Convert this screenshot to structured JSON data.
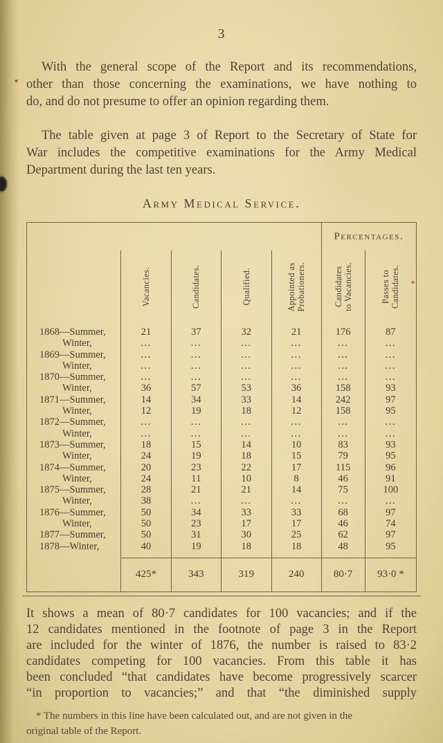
{
  "page": {
    "number": "3",
    "paragraph1": {
      "lines": [
        {
          "text": "With the general scope of the Report and its recommendations,",
          "indent": true,
          "justify": true
        },
        {
          "text": "other than those concerning the examinations, we have nothing to",
          "indent": false,
          "justify": true
        },
        {
          "text": "do, and do not presume to offer an opinion regarding them.",
          "indent": false,
          "justify": false
        }
      ]
    },
    "paragraph2": {
      "lines": [
        {
          "text": "The table given at page 3 of Report to the Secretary of State for",
          "indent": true,
          "justify": true
        },
        {
          "text": "War includes the competitive examinations for the Army Medical",
          "indent": false,
          "justify": true
        },
        {
          "text": "Department during the last ten years.",
          "indent": false,
          "justify": false
        }
      ]
    },
    "table_title": "Army Medical Service.",
    "closing_paragraph": {
      "lines": [
        {
          "text": "It shows a mean of 80·7 candidates for 100 vacancies; and if the",
          "indent": false,
          "justify": true
        },
        {
          "text": "12 candidates mentioned in the footnote of page 3 in the Report",
          "indent": false,
          "justify": true
        },
        {
          "text": "are included for the winter of 1876, the number is raised to 83·2",
          "indent": false,
          "justify": true
        },
        {
          "text": "candidates competing for 100 vacancies.  From this table it has",
          "indent": false,
          "justify": true
        },
        {
          "text": "been concluded “that candidates have become progressively scarcer",
          "indent": false,
          "justify": true
        },
        {
          "text": "“in proportion to vacancies;” and that “the diminished supply",
          "indent": false,
          "justify": true
        }
      ]
    },
    "footnote": {
      "lines": [
        {
          "text": "* The numbers in this line have been calculated out, and are not given in the",
          "indent": true,
          "justify": false
        },
        {
          "text": "original table of the Report.",
          "indent": false,
          "justify": false
        }
      ]
    }
  },
  "table": {
    "percentages_header": "Percentages.",
    "column_headers": [
      {
        "lines": [
          "Vacancies."
        ]
      },
      {
        "lines": [
          "Candidates."
        ]
      },
      {
        "lines": [
          "Qualified."
        ]
      },
      {
        "lines": [
          "Appointed as",
          "Probationers."
        ]
      },
      {
        "lines": [
          "Candidates",
          "to Vacancies."
        ]
      },
      {
        "lines": [
          "Passes to",
          "Candidates."
        ]
      }
    ],
    "rows": [
      {
        "label": "1868—Summer,",
        "indent": false,
        "values": [
          "21",
          "37",
          "32",
          "21",
          "176",
          "87"
        ]
      },
      {
        "label": "Winter,",
        "indent": true,
        "values": [
          "...",
          "...",
          "...",
          "...",
          "...",
          "..."
        ]
      },
      {
        "label": "1869—Summer,",
        "indent": false,
        "values": [
          "...",
          "...",
          "...",
          "...",
          "...",
          "..."
        ]
      },
      {
        "label": "Winter,",
        "indent": true,
        "values": [
          "...",
          "...",
          "...",
          "...",
          "...",
          "..."
        ]
      },
      {
        "label": "1870—Summer,",
        "indent": false,
        "values": [
          "...",
          "...",
          "...",
          "...",
          "...",
          "..."
        ]
      },
      {
        "label": "Winter,",
        "indent": true,
        "values": [
          "36",
          "57",
          "53",
          "36",
          "158",
          "93"
        ]
      },
      {
        "label": "1871—Summer,",
        "indent": false,
        "values": [
          "14",
          "34",
          "33",
          "14",
          "242",
          "97"
        ]
      },
      {
        "label": "Winter,",
        "indent": true,
        "values": [
          "12",
          "19",
          "18",
          "12",
          "158",
          "95"
        ]
      },
      {
        "label": "1872—Summer,",
        "indent": false,
        "values": [
          "...",
          "...",
          "...",
          "...",
          "...",
          "..."
        ]
      },
      {
        "label": "Winter,",
        "indent": true,
        "values": [
          "...",
          "...",
          "...",
          "...",
          "...",
          "..."
        ]
      },
      {
        "label": "1873—Summer,",
        "indent": false,
        "values": [
          "18",
          "15",
          "14",
          "10",
          "83",
          "93"
        ]
      },
      {
        "label": "Winter,",
        "indent": true,
        "values": [
          "24",
          "19",
          "18",
          "15",
          "79",
          "95"
        ]
      },
      {
        "label": "1874—Summer,",
        "indent": false,
        "values": [
          "20",
          "23",
          "22",
          "17",
          "115",
          "96"
        ]
      },
      {
        "label": "Winter,",
        "indent": true,
        "values": [
          "24",
          "11",
          "10",
          "8",
          "46",
          "91"
        ]
      },
      {
        "label": "1875—Summer,",
        "indent": false,
        "values": [
          "28",
          "21",
          "21",
          "14",
          "75",
          "100"
        ]
      },
      {
        "label": "Winter,",
        "indent": true,
        "values": [
          "38",
          "...",
          "...",
          "...",
          "...",
          "..."
        ]
      },
      {
        "label": "1876—Summer,",
        "indent": false,
        "values": [
          "50",
          "34",
          "33",
          "33",
          "68",
          "97"
        ]
      },
      {
        "label": "Winter,",
        "indent": true,
        "values": [
          "50",
          "23",
          "17",
          "17",
          "46",
          "74"
        ]
      },
      {
        "label": "1877—Summer,",
        "indent": false,
        "values": [
          "50",
          "31",
          "30",
          "25",
          "62",
          "97"
        ]
      },
      {
        "label": "1878—Winter,",
        "indent": false,
        "values": [
          "40",
          "19",
          "18",
          "18",
          "48",
          "95"
        ]
      }
    ],
    "totals": {
      "label": "",
      "values": [
        "425*",
        "343",
        "319",
        "240",
        "80·7",
        "93·0 *"
      ]
    }
  },
  "colors": {
    "paper": "#e7d9a8",
    "ink": "#4e4436",
    "rule": "#6f6048"
  }
}
